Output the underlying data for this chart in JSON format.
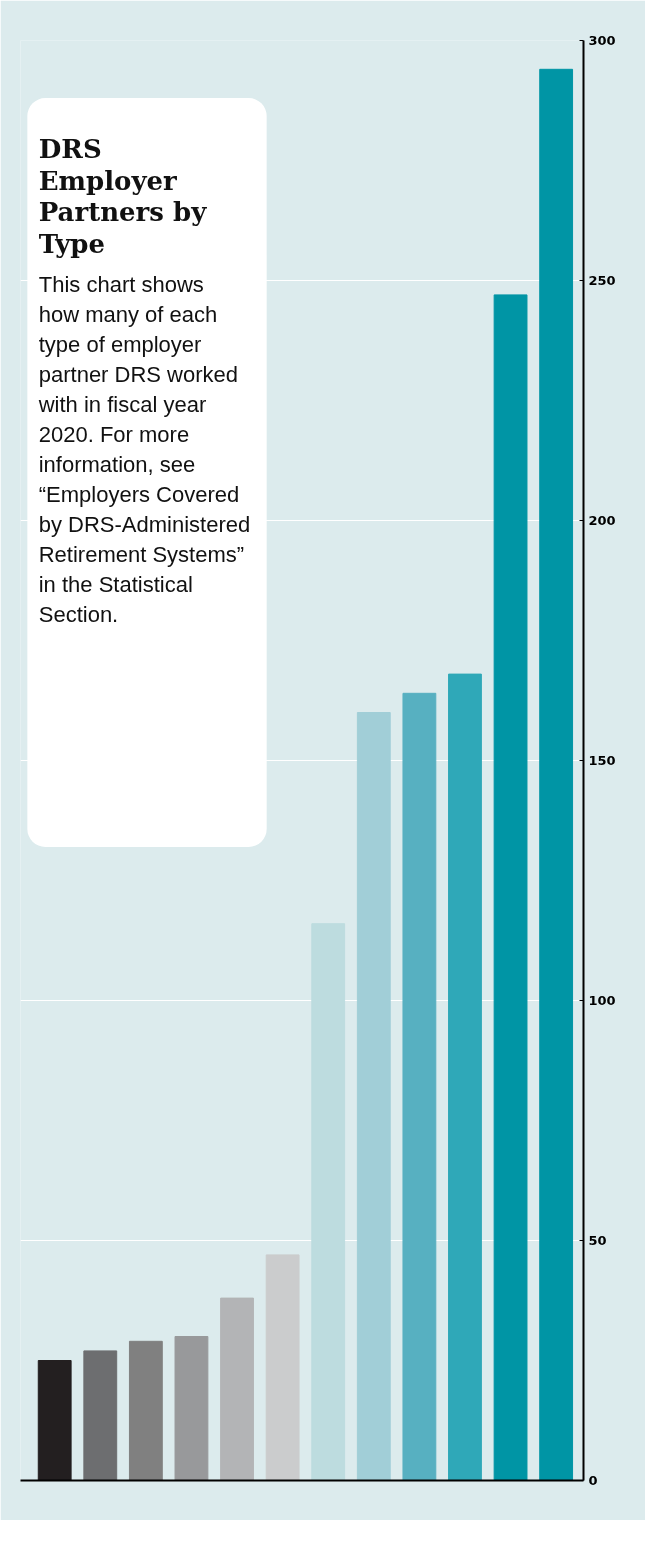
{
  "chart_data": {
    "type": "bar",
    "title": "DRS Employer Partners by Type",
    "subtitle": "This chart shows how many of each type of employer partner DRS worked with in fiscal year 2020. For more information, see “Employers Covered by DRS-Administered Retirement Systems” in the Statistical Section.",
    "categories": [
      null,
      null,
      null,
      null,
      null,
      null,
      null,
      null,
      null,
      null,
      null,
      null
    ],
    "values": [
      25,
      27,
      29,
      30,
      38,
      47,
      116,
      160,
      164,
      168,
      247,
      294
    ],
    "colors": [
      "#231f20",
      "#6d6e70",
      "#808080",
      "#98999b",
      "#b3b4b6",
      "#cbcccd",
      "#bddcdf",
      "#a1ced7",
      "#57b0c1",
      "#2fa8b8",
      "#0095a5",
      "#0095a5"
    ],
    "ylim": [
      0,
      300
    ],
    "yticks": [
      0,
      50,
      100,
      150,
      200,
      250,
      300
    ],
    "grid": "y",
    "tick_labels": "y"
  }
}
